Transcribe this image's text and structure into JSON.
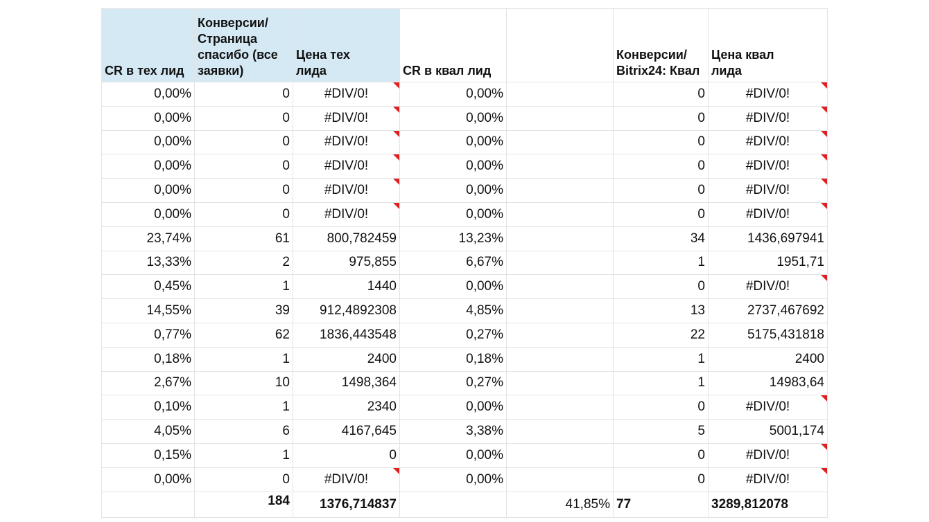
{
  "table": {
    "header": [
      "CR в тех лид",
      "Конверсии/ Страница спасибо (все заявки)",
      "Цена тех лида",
      "CR в квал лид",
      null,
      "Конверсии/ Bitrix24: Квал",
      "Цена квал лида"
    ],
    "rows": [
      [
        "0,00%",
        "0",
        "#DIV/0!",
        "0,00%",
        null,
        "0",
        "#DIV/0!"
      ],
      [
        "0,00%",
        "0",
        "#DIV/0!",
        "0,00%",
        null,
        "0",
        "#DIV/0!"
      ],
      [
        "0,00%",
        "0",
        "#DIV/0!",
        "0,00%",
        null,
        "0",
        "#DIV/0!"
      ],
      [
        "0,00%",
        "0",
        "#DIV/0!",
        "0,00%",
        null,
        "0",
        "#DIV/0!"
      ],
      [
        "0,00%",
        "0",
        "#DIV/0!",
        "0,00%",
        null,
        "0",
        "#DIV/0!"
      ],
      [
        "0,00%",
        "0",
        "#DIV/0!",
        "0,00%",
        null,
        "0",
        "#DIV/0!"
      ],
      [
        "23,74%",
        "61",
        "800,782459",
        "13,23%",
        null,
        "34",
        "1436,697941"
      ],
      [
        "13,33%",
        "2",
        "975,855",
        "6,67%",
        null,
        "1",
        "1951,71"
      ],
      [
        "0,45%",
        "1",
        "1440",
        "0,00%",
        null,
        "0",
        "#DIV/0!"
      ],
      [
        "14,55%",
        "39",
        "912,4892308",
        "4,85%",
        null,
        "13",
        "2737,467692"
      ],
      [
        "0,77%",
        "62",
        "1836,443548",
        "0,27%",
        null,
        "22",
        "5175,431818"
      ],
      [
        "0,18%",
        "1",
        "2400",
        "0,18%",
        null,
        "1",
        "2400"
      ],
      [
        "2,67%",
        "10",
        "1498,364",
        "0,27%",
        null,
        "1",
        "14983,64"
      ],
      [
        "0,10%",
        "1",
        "2340",
        "0,00%",
        null,
        "0",
        "#DIV/0!"
      ],
      [
        "4,05%",
        "6",
        "4167,645",
        "3,38%",
        null,
        "5",
        "5001,174"
      ],
      [
        "0,15%",
        "1",
        "0",
        "0,00%",
        null,
        "0",
        "#DIV/0!"
      ],
      [
        "0,00%",
        "0",
        "#DIV/0!",
        "0,00%",
        null,
        "0",
        "#DIV/0!"
      ]
    ],
    "total": [
      null,
      "184",
      "1376,714837",
      null,
      "41,85%",
      "77",
      "3289,812078"
    ]
  }
}
